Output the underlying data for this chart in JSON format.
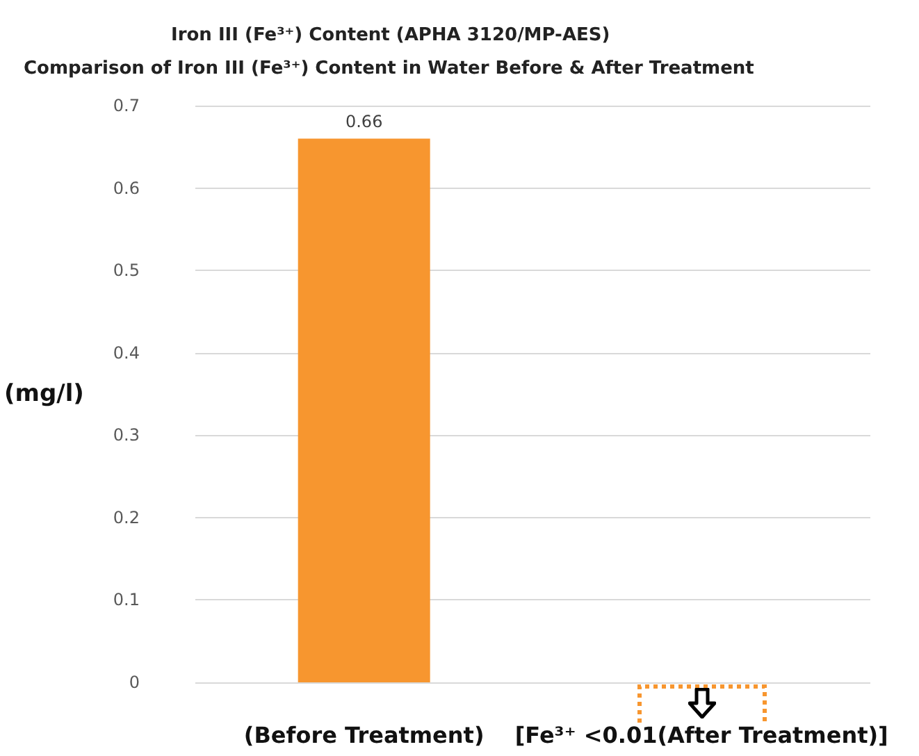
{
  "chart_data": {
    "type": "bar",
    "title": "Iron III (Fe³⁺) Content (APHA 3120/MP-AES)",
    "subtitle": "Comparison of Iron III (Fe³⁺) Content in Water Before & After Treatment",
    "ylabel": "(mg/l)",
    "categories": [
      "(Before Treatment)",
      "[Fe³⁺ <0.01(After Treatment)]"
    ],
    "values": [
      0.66,
      null
    ],
    "color": "#f7962f",
    "value_labels": [
      "0.66",
      null
    ],
    "ylim": [
      0,
      0.7
    ],
    "yticks": [
      0,
      0.1,
      0.2,
      0.3,
      0.4,
      0.5,
      0.6,
      0.7
    ],
    "grid": "y"
  }
}
